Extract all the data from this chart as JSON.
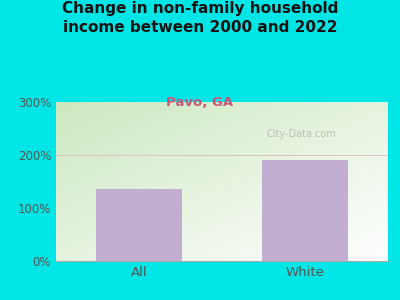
{
  "title": "Change in non-family household\nincome between 2000 and 2022",
  "subtitle": "Pavo, GA",
  "categories": [
    "All",
    "White"
  ],
  "values": [
    135,
    190
  ],
  "bar_color": "#c2aed0",
  "title_fontsize": 11,
  "subtitle_fontsize": 9.5,
  "subtitle_color": "#cc5577",
  "title_color": "#111111",
  "tick_color": "#555555",
  "background_outer": "#00e5e5",
  "ylim": [
    0,
    300
  ],
  "yticks": [
    0,
    100,
    200,
    300
  ],
  "plot_bg_topleft": "#cce8c0",
  "plot_bg_bottomright": "#ffffff",
  "watermark": "City-Data.com"
}
